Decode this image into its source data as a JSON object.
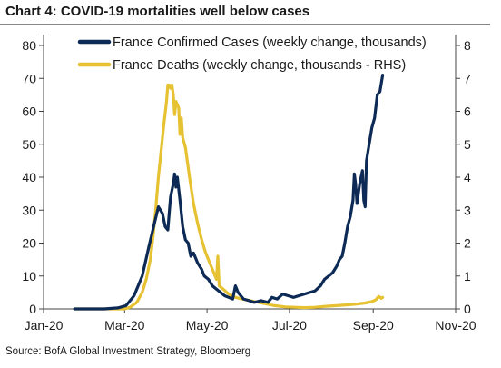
{
  "title": "Chart 4: COVID-19 mortalities well below cases",
  "source": "Source: BofA Global Investment Strategy, Bloomberg",
  "chart_data": {
    "type": "line",
    "title": "Chart 4: COVID-19 mortalities well below cases",
    "x_tick_labels": [
      "Jan-20",
      "Mar-20",
      "May-20",
      "Jul-20",
      "Sep-20",
      "Nov-20"
    ],
    "xlim": [
      "2020-01-01",
      "2020-11-01"
    ],
    "y_left": {
      "ylim": [
        0,
        80
      ],
      "ticks": [
        "0",
        "10",
        "20",
        "30",
        "40",
        "50",
        "60",
        "70",
        "80"
      ]
    },
    "y_right": {
      "ylim": [
        0,
        8
      ],
      "ticks": [
        "0",
        "1",
        "2",
        "3",
        "4",
        "5",
        "6",
        "7",
        "8"
      ]
    },
    "legend_position": "top",
    "grid": false,
    "series": [
      {
        "name": "France Confirmed Cases (weekly change, thousands)",
        "axis": "left",
        "color": "#0c2a55",
        "points": [
          [
            "2020-01-24",
            0
          ],
          [
            "2020-02-15",
            0
          ],
          [
            "2020-02-25",
            0.3
          ],
          [
            "2020-03-02",
            1
          ],
          [
            "2020-03-08",
            4
          ],
          [
            "2020-03-14",
            10
          ],
          [
            "2020-03-19",
            19
          ],
          [
            "2020-03-23",
            26
          ],
          [
            "2020-03-26",
            31
          ],
          [
            "2020-03-29",
            29
          ],
          [
            "2020-03-31",
            25
          ],
          [
            "2020-04-02",
            24
          ],
          [
            "2020-04-04",
            34
          ],
          [
            "2020-04-06",
            38
          ],
          [
            "2020-04-07",
            41
          ],
          [
            "2020-04-08",
            37
          ],
          [
            "2020-04-09",
            40
          ],
          [
            "2020-04-11",
            33
          ],
          [
            "2020-04-13",
            25
          ],
          [
            "2020-04-15",
            21
          ],
          [
            "2020-04-17",
            20
          ],
          [
            "2020-04-19",
            16
          ],
          [
            "2020-04-21",
            17
          ],
          [
            "2020-04-24",
            14
          ],
          [
            "2020-04-27",
            12
          ],
          [
            "2020-04-29",
            10
          ],
          [
            "2020-05-02",
            9
          ],
          [
            "2020-05-05",
            7
          ],
          [
            "2020-05-08",
            6
          ],
          [
            "2020-05-11",
            5
          ],
          [
            "2020-05-14",
            4
          ],
          [
            "2020-05-17",
            3.5
          ],
          [
            "2020-05-20",
            3
          ],
          [
            "2020-05-22",
            7
          ],
          [
            "2020-05-24",
            5
          ],
          [
            "2020-05-28",
            3
          ],
          [
            "2020-06-01",
            2.5
          ],
          [
            "2020-06-05",
            2
          ],
          [
            "2020-06-10",
            2.5
          ],
          [
            "2020-06-15",
            2
          ],
          [
            "2020-06-18",
            3.5
          ],
          [
            "2020-06-22",
            3
          ],
          [
            "2020-06-26",
            4.5
          ],
          [
            "2020-06-30",
            4
          ],
          [
            "2020-07-04",
            3.5
          ],
          [
            "2020-07-08",
            4
          ],
          [
            "2020-07-12",
            4.5
          ],
          [
            "2020-07-16",
            5
          ],
          [
            "2020-07-20",
            5.5
          ],
          [
            "2020-07-24",
            7
          ],
          [
            "2020-07-27",
            9
          ],
          [
            "2020-07-30",
            10
          ],
          [
            "2020-08-02",
            11
          ],
          [
            "2020-08-05",
            13
          ],
          [
            "2020-08-07",
            15
          ],
          [
            "2020-08-09",
            16
          ],
          [
            "2020-08-11",
            20
          ],
          [
            "2020-08-13",
            25
          ],
          [
            "2020-08-15",
            28
          ],
          [
            "2020-08-17",
            33
          ],
          [
            "2020-08-18",
            41
          ],
          [
            "2020-08-19",
            38
          ],
          [
            "2020-08-20",
            32
          ],
          [
            "2020-08-22",
            38
          ],
          [
            "2020-08-24",
            42
          ],
          [
            "2020-08-25",
            33
          ],
          [
            "2020-08-26",
            31
          ],
          [
            "2020-08-27",
            45
          ],
          [
            "2020-08-29",
            50
          ],
          [
            "2020-08-31",
            55
          ],
          [
            "2020-09-02",
            58
          ],
          [
            "2020-09-04",
            65
          ],
          [
            "2020-09-06",
            66
          ],
          [
            "2020-09-08",
            71
          ]
        ]
      },
      {
        "name": "France Deaths (weekly change, thousands - RHS)",
        "axis": "right",
        "color": "#e6c233",
        "points": [
          [
            "2020-01-24",
            0
          ],
          [
            "2020-02-20",
            0
          ],
          [
            "2020-03-01",
            0
          ],
          [
            "2020-03-05",
            0.05
          ],
          [
            "2020-03-10",
            0.2
          ],
          [
            "2020-03-14",
            0.5
          ],
          [
            "2020-03-17",
            0.9
          ],
          [
            "2020-03-20",
            1.5
          ],
          [
            "2020-03-22",
            2.2
          ],
          [
            "2020-03-24",
            3
          ],
          [
            "2020-03-26",
            4
          ],
          [
            "2020-03-28",
            4.8
          ],
          [
            "2020-03-30",
            5.6
          ],
          [
            "2020-04-01",
            6.3
          ],
          [
            "2020-04-02",
            6.8
          ],
          [
            "2020-04-03",
            6.8
          ],
          [
            "2020-04-04",
            6.7
          ],
          [
            "2020-04-05",
            6.8
          ],
          [
            "2020-04-06",
            6.5
          ],
          [
            "2020-04-07",
            5.9
          ],
          [
            "2020-04-08",
            6.3
          ],
          [
            "2020-04-10",
            6.1
          ],
          [
            "2020-04-11",
            5.3
          ],
          [
            "2020-04-12",
            5.8
          ],
          [
            "2020-04-13",
            5.2
          ],
          [
            "2020-04-15",
            4.9
          ],
          [
            "2020-04-18",
            4
          ],
          [
            "2020-04-21",
            3.2
          ],
          [
            "2020-04-24",
            2.6
          ],
          [
            "2020-04-27",
            2.1
          ],
          [
            "2020-04-30",
            1.7
          ],
          [
            "2020-05-03",
            1.4
          ],
          [
            "2020-05-06",
            1.1
          ],
          [
            "2020-05-08",
            0.9
          ],
          [
            "2020-05-09",
            1.6
          ],
          [
            "2020-05-10",
            0.7
          ],
          [
            "2020-05-13",
            0.6
          ],
          [
            "2020-05-17",
            0.45
          ],
          [
            "2020-05-22",
            0.35
          ],
          [
            "2020-05-27",
            0.3
          ],
          [
            "2020-06-02",
            0.25
          ],
          [
            "2020-06-08",
            0.2
          ],
          [
            "2020-06-14",
            0.15
          ],
          [
            "2020-06-20",
            0.1
          ],
          [
            "2020-06-28",
            0.06
          ],
          [
            "2020-07-05",
            0.05
          ],
          [
            "2020-07-12",
            0.04
          ],
          [
            "2020-07-20",
            0.05
          ],
          [
            "2020-07-28",
            0.08
          ],
          [
            "2020-08-05",
            0.1
          ],
          [
            "2020-08-12",
            0.12
          ],
          [
            "2020-08-20",
            0.15
          ],
          [
            "2020-08-26",
            0.18
          ],
          [
            "2020-08-31",
            0.22
          ],
          [
            "2020-09-03",
            0.28
          ],
          [
            "2020-09-05",
            0.38
          ],
          [
            "2020-09-07",
            0.32
          ],
          [
            "2020-09-08",
            0.35
          ]
        ]
      }
    ]
  }
}
